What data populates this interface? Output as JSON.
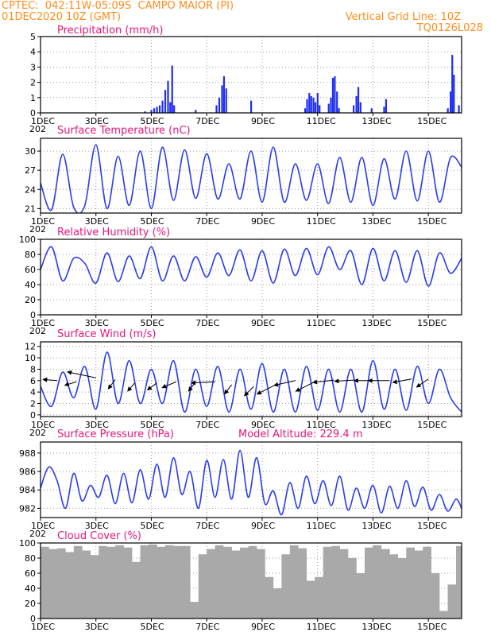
{
  "header": {
    "line1": "CPTEC:  042:11W-05:09S  CAMPO MAIOR (PI)",
    "line2": "01DEC2020 10Z (GMT)",
    "right1": "Vertical Grid Line: 10Z",
    "right2": "TQ0126L028"
  },
  "colors": {
    "header": "#ff8c1a",
    "title": "#e8157a",
    "line": "#2a3cf0",
    "bar": "#1f2ef0",
    "cloud": "#a9a9a9",
    "wind_arrow": "#000000"
  },
  "x_axis": {
    "tick_labels": [
      "1DEC",
      "3DEC",
      "5DEC",
      "7DEC",
      "9DEC",
      "11DEC",
      "13DEC",
      "15DEC"
    ],
    "tick_days": [
      1,
      3,
      5,
      7,
      9,
      11,
      13,
      15
    ],
    "partial_label": "202",
    "range_days": [
      1.0,
      16.2
    ]
  },
  "chart_data": [
    {
      "type": "bar",
      "title": "Precipitation (mm/h)",
      "ylim": [
        0,
        5
      ],
      "yticks": [
        0,
        1,
        2,
        3,
        4,
        5
      ],
      "grid": true,
      "bars": [
        [
          4.77,
          0.1
        ],
        [
          5.0,
          0.2
        ],
        [
          5.1,
          0.3
        ],
        [
          5.2,
          0.4
        ],
        [
          5.3,
          0.5
        ],
        [
          5.4,
          0.8
        ],
        [
          5.5,
          1.5
        ],
        [
          5.6,
          2.1
        ],
        [
          5.68,
          0.7
        ],
        [
          5.75,
          3.1
        ],
        [
          5.82,
          0.5
        ],
        [
          6.6,
          0.2
        ],
        [
          7.35,
          0.5
        ],
        [
          7.45,
          1.0
        ],
        [
          7.55,
          1.8
        ],
        [
          7.62,
          2.4
        ],
        [
          7.7,
          1.6
        ],
        [
          8.6,
          0.8
        ],
        [
          10.55,
          0.3
        ],
        [
          10.62,
          0.9
        ],
        [
          10.7,
          1.3
        ],
        [
          10.77,
          1.1
        ],
        [
          10.85,
          1.0
        ],
        [
          10.92,
          0.7
        ],
        [
          11.0,
          1.3
        ],
        [
          11.07,
          0.5
        ],
        [
          11.4,
          0.6
        ],
        [
          11.48,
          1.0
        ],
        [
          11.55,
          2.3
        ],
        [
          11.62,
          2.4
        ],
        [
          11.7,
          1.4
        ],
        [
          11.77,
          0.3
        ],
        [
          12.3,
          0.5
        ],
        [
          12.4,
          1.1
        ],
        [
          12.47,
          1.7
        ],
        [
          12.55,
          0.7
        ],
        [
          12.95,
          0.3
        ],
        [
          13.4,
          0.4
        ],
        [
          13.47,
          0.9
        ],
        [
          15.7,
          0.3
        ],
        [
          15.8,
          1.4
        ],
        [
          15.86,
          3.8
        ],
        [
          15.92,
          2.5
        ],
        [
          16.1,
          0.5
        ]
      ]
    },
    {
      "type": "line",
      "title": "Surface Temperature (nC)",
      "ylim": [
        20.3,
        32.0
      ],
      "yticks": [
        21,
        24,
        27,
        30
      ],
      "grid": true,
      "x": [
        1.0,
        1.4,
        1.8,
        2.2,
        2.6,
        3.0,
        3.4,
        3.8,
        4.2,
        4.6,
        5.0,
        5.4,
        5.8,
        6.2,
        6.6,
        7.0,
        7.4,
        7.8,
        8.2,
        8.6,
        9.0,
        9.4,
        9.8,
        10.2,
        10.6,
        11.0,
        11.4,
        11.8,
        12.2,
        12.6,
        13.0,
        13.4,
        13.8,
        14.2,
        14.6,
        15.0,
        15.4,
        15.8,
        16.2
      ],
      "y": [
        25.0,
        20.8,
        29.5,
        21.2,
        21.5,
        31.0,
        21.0,
        29.2,
        21.5,
        30.0,
        21.0,
        30.6,
        22.3,
        30.2,
        22.6,
        29.6,
        22.5,
        28.0,
        22.5,
        30.0,
        22.0,
        30.6,
        22.0,
        28.0,
        22.3,
        28.0,
        21.8,
        29.0,
        22.0,
        29.0,
        21.5,
        28.8,
        22.5,
        30.0,
        22.2,
        30.0,
        22.0,
        29.0,
        27.5
      ]
    },
    {
      "type": "line",
      "title": "Relative Humidity (%)",
      "ylim": [
        0,
        100
      ],
      "yticks": [
        0,
        20,
        40,
        60,
        80,
        100
      ],
      "grid": true,
      "x": [
        1.0,
        1.4,
        1.8,
        2.2,
        2.6,
        3.0,
        3.4,
        3.8,
        4.2,
        4.6,
        5.0,
        5.4,
        5.8,
        6.2,
        6.6,
        7.0,
        7.4,
        7.8,
        8.2,
        8.6,
        9.0,
        9.4,
        9.8,
        10.2,
        10.6,
        11.0,
        11.4,
        11.8,
        12.2,
        12.6,
        13.0,
        13.4,
        13.8,
        14.2,
        14.6,
        15.0,
        15.4,
        15.8,
        16.2
      ],
      "y": [
        60,
        90,
        45,
        75,
        68,
        42,
        82,
        44,
        78,
        48,
        90,
        45,
        78,
        45,
        77,
        50,
        82,
        52,
        86,
        45,
        85,
        42,
        87,
        52,
        88,
        53,
        90,
        60,
        85,
        40,
        88,
        45,
        85,
        43,
        85,
        38,
        82,
        55,
        75
      ]
    },
    {
      "type": "line",
      "title": "Surface Wind (m/s)",
      "ylim": [
        -0.3,
        12.8
      ],
      "yticks": [
        0,
        2,
        4,
        6,
        8,
        10,
        12
      ],
      "grid": true,
      "x": [
        1.0,
        1.4,
        1.8,
        2.2,
        2.6,
        3.0,
        3.4,
        3.8,
        4.2,
        4.6,
        5.0,
        5.4,
        5.8,
        6.2,
        6.6,
        7.0,
        7.4,
        7.8,
        8.2,
        8.6,
        9.0,
        9.4,
        9.8,
        10.2,
        10.6,
        11.0,
        11.4,
        11.8,
        12.2,
        12.6,
        13.0,
        13.4,
        13.8,
        14.2,
        14.6,
        15.0,
        15.4,
        15.8,
        16.2
      ],
      "y": [
        5,
        1.5,
        7.5,
        3,
        8.5,
        1,
        11,
        2,
        9.5,
        2,
        8,
        2,
        9.5,
        0.5,
        8,
        1.5,
        8.5,
        0.5,
        8,
        1,
        9,
        0.5,
        8,
        0.5,
        8.5,
        0.8,
        8,
        0.5,
        8,
        0.5,
        9.5,
        1,
        8,
        0.8,
        8.5,
        2,
        8,
        3,
        0.5
      ],
      "vectors": [
        [
          1.6,
          6.0,
          -0.6,
          0.1
        ],
        [
          2.3,
          5.8,
          -0.5,
          -0.3
        ],
        [
          3.0,
          6.5,
          -1.2,
          0.5
        ],
        [
          3.7,
          6.2,
          -0.3,
          -0.8
        ],
        [
          4.4,
          5.6,
          -0.3,
          -0.7
        ],
        [
          5.2,
          5.6,
          -0.4,
          -0.6
        ],
        [
          5.9,
          5.8,
          -0.6,
          -0.5
        ],
        [
          6.6,
          5.8,
          -0.3,
          -0.8
        ],
        [
          7.3,
          5.8,
          -1.0,
          -0.1
        ],
        [
          7.9,
          5.3,
          -0.3,
          -0.8
        ],
        [
          8.7,
          5.0,
          -0.4,
          -0.8
        ],
        [
          9.5,
          5.3,
          -0.8,
          -0.8
        ],
        [
          10.2,
          6.0,
          -0.9,
          -0.4
        ],
        [
          10.9,
          5.8,
          -0.8,
          -0.8
        ],
        [
          11.6,
          6.1,
          -0.9,
          -0.2
        ],
        [
          12.3,
          6.1,
          -0.8,
          -0.1
        ],
        [
          13.0,
          6.0,
          -0.8,
          0.0
        ],
        [
          13.6,
          6.0,
          -0.9,
          0.0
        ],
        [
          14.4,
          6.3,
          -0.8,
          -0.3
        ],
        [
          15.0,
          6.3,
          -0.5,
          -0.7
        ]
      ]
    },
    {
      "type": "line",
      "title": "Surface Pressure (hPa)",
      "annotation": "Model Altitude: 229.4 m",
      "ylim": [
        981.0,
        989.2
      ],
      "yticks": [
        982,
        984,
        986,
        988
      ],
      "grid": true,
      "x": [
        1.0,
        1.3,
        1.6,
        1.9,
        2.2,
        2.5,
        2.8,
        3.1,
        3.4,
        3.7,
        4.0,
        4.3,
        4.6,
        4.9,
        5.2,
        5.5,
        5.8,
        6.1,
        6.4,
        6.7,
        7.0,
        7.3,
        7.6,
        7.9,
        8.2,
        8.5,
        8.8,
        9.1,
        9.4,
        9.7,
        10.0,
        10.3,
        10.6,
        10.9,
        11.2,
        11.5,
        11.8,
        12.1,
        12.4,
        12.7,
        13.0,
        13.3,
        13.6,
        13.9,
        14.2,
        14.5,
        14.8,
        15.1,
        15.4,
        15.7,
        16.0,
        16.2
      ],
      "y": [
        984.2,
        986.5,
        985.0,
        982.0,
        985.8,
        982.8,
        984.5,
        983.2,
        985.6,
        982.5,
        985.8,
        982.6,
        986.2,
        983.0,
        986.8,
        983.2,
        987.5,
        983.5,
        986.0,
        982.0,
        987.2,
        983.2,
        987.3,
        983.0,
        988.3,
        983.2,
        987.5,
        982.5,
        983.9,
        981.3,
        984.8,
        982.0,
        985.5,
        982.5,
        985.0,
        982.3,
        985.5,
        981.8,
        984.2,
        982.0,
        984.5,
        981.5,
        984.4,
        982.0,
        985.0,
        982.2,
        984.3,
        981.8,
        983.5,
        981.7,
        983.0,
        982.0
      ]
    },
    {
      "type": "area",
      "title": "Cloud Cover (%)",
      "ylim": [
        0,
        100
      ],
      "yticks": [
        0,
        20,
        40,
        60,
        80,
        100
      ],
      "grid": true,
      "x": [
        1.0,
        1.3,
        1.6,
        1.9,
        2.2,
        2.5,
        2.8,
        3.1,
        3.4,
        3.7,
        4.0,
        4.3,
        4.6,
        4.9,
        5.2,
        5.5,
        5.8,
        6.1,
        6.4,
        6.7,
        7.0,
        7.3,
        7.6,
        7.9,
        8.2,
        8.5,
        8.8,
        9.1,
        9.4,
        9.7,
        10.0,
        10.3,
        10.6,
        10.9,
        11.2,
        11.5,
        11.8,
        12.1,
        12.4,
        12.7,
        13.0,
        13.3,
        13.6,
        13.9,
        14.2,
        14.5,
        14.8,
        15.1,
        15.4,
        15.7,
        16.0,
        16.2
      ],
      "y": [
        95,
        92,
        93,
        88,
        96,
        90,
        84,
        96,
        95,
        97,
        94,
        75,
        97,
        98,
        95,
        97,
        96,
        96,
        22,
        85,
        92,
        97,
        95,
        90,
        94,
        96,
        92,
        55,
        40,
        85,
        97,
        93,
        50,
        55,
        95,
        96,
        92,
        80,
        60,
        94,
        97,
        92,
        85,
        80,
        94,
        90,
        95,
        60,
        10,
        45,
        96,
        96
      ]
    }
  ]
}
